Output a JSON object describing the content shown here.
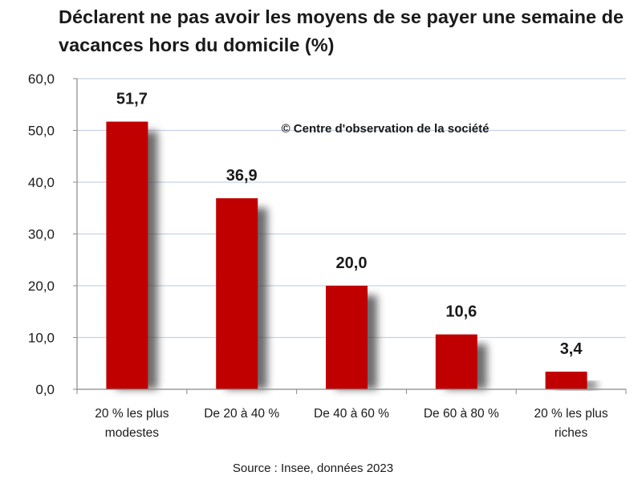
{
  "chart_data": {
    "type": "bar",
    "title": "Déclarent ne pas avoir les moyens de se payer une semaine de vacances hors du domicile (%)",
    "categories": [
      "20 % les plus modestes",
      "De 20 à 40 %",
      "De 40 à 60 %",
      "De 60 à 80 %",
      "20 % les plus riches"
    ],
    "values": [
      51.7,
      36.9,
      20.0,
      10.6,
      3.4
    ],
    "value_labels": [
      "51,7",
      "36,9",
      "20,0",
      "10,6",
      "3,4"
    ],
    "y_ticks": [
      "0,0",
      "10,0",
      "20,0",
      "30,0",
      "40,0",
      "50,0",
      "60,0"
    ],
    "ylim": [
      0,
      60
    ],
    "grid": true,
    "bar_color": "#c00000",
    "grid_color": "#c5d3e6",
    "watermark": "© Centre d'observation de la société",
    "source": "Source : Insee, données 2023"
  }
}
